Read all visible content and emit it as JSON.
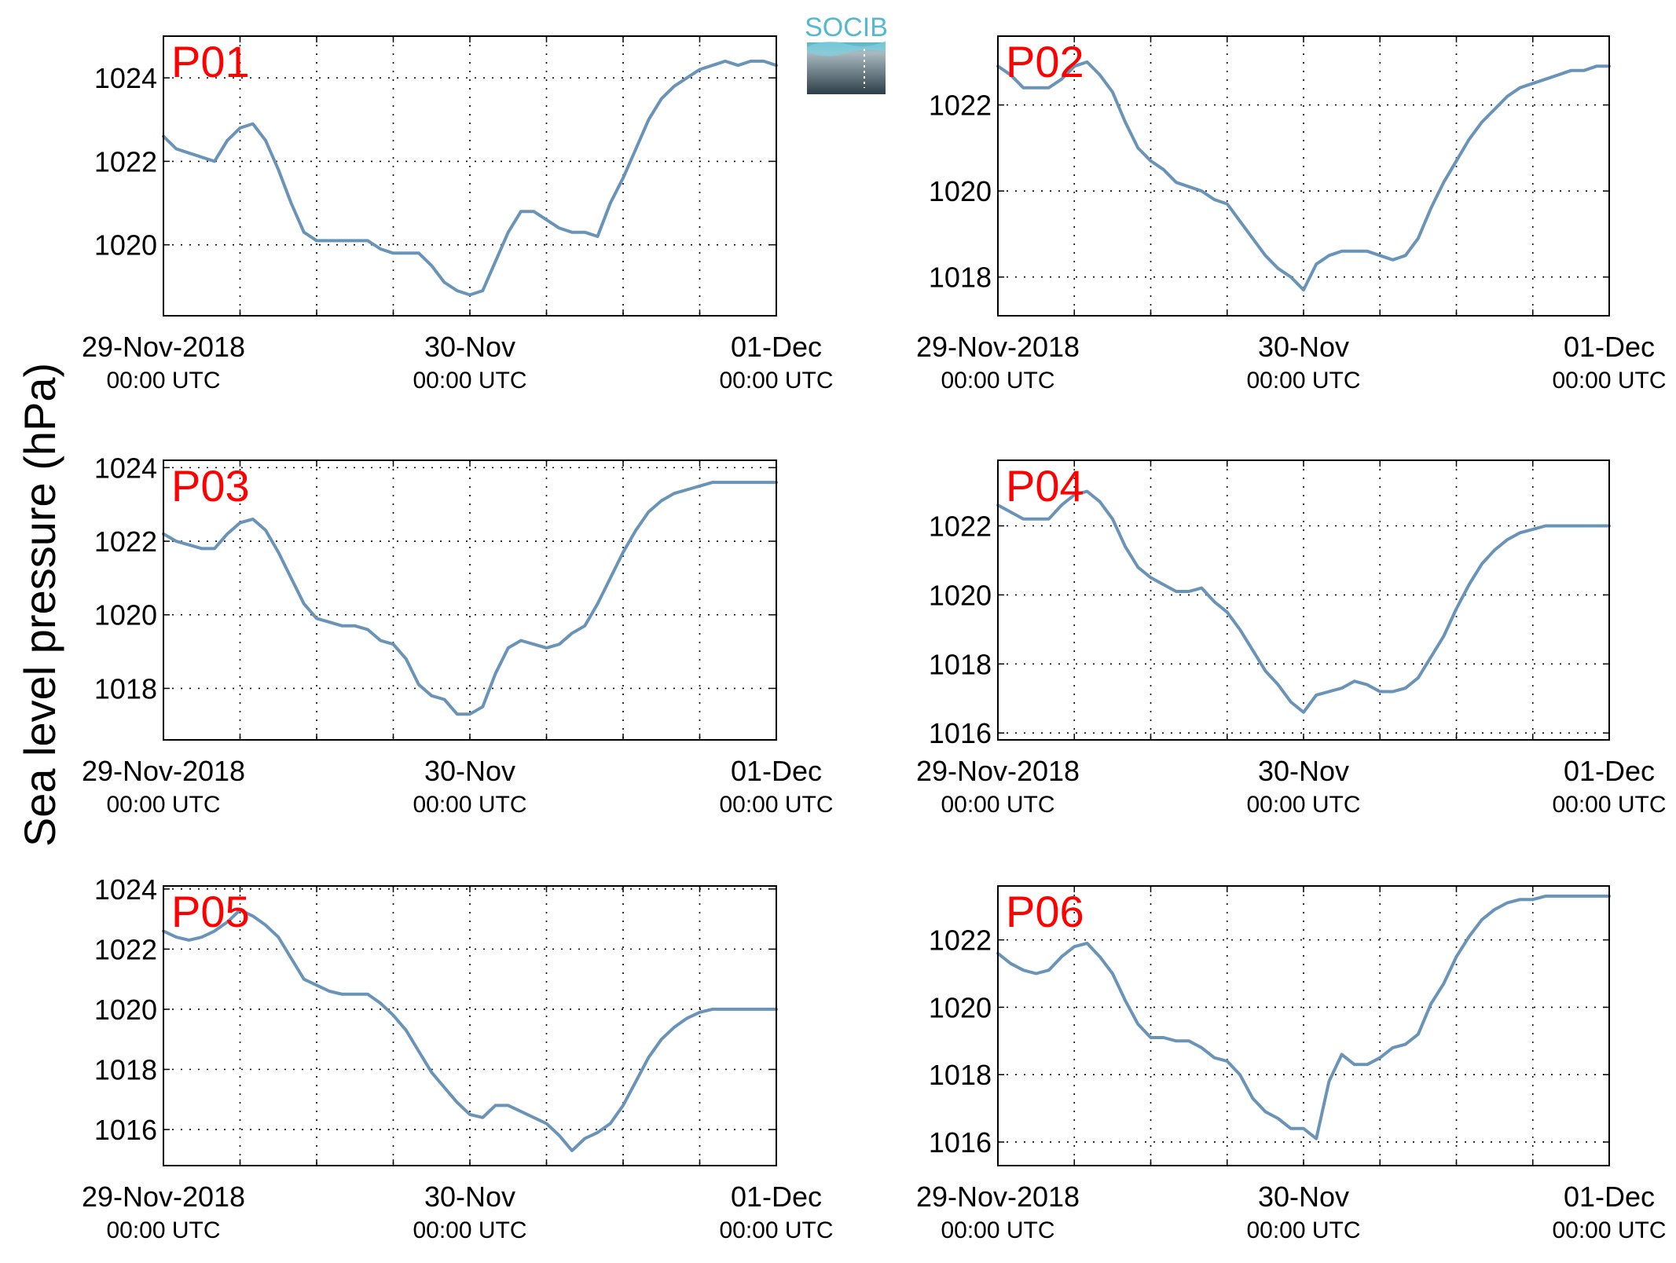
{
  "figure": {
    "ylabel": "Sea level pressure (hPa)",
    "logo_text": "SOCIB",
    "colors": {
      "line": "#6a93b8",
      "panel_label": "#ff0000",
      "grid": "#000000",
      "logo_top": "#55b8cc",
      "logo_bottom": "#2c3e48"
    }
  },
  "chart_data": [
    {
      "type": "line",
      "panel_label": "P01",
      "x_ticks": [
        {
          "pos": 0,
          "date": "29-Nov-2018",
          "time": "00:00 UTC"
        },
        {
          "pos": 24,
          "date": "30-Nov",
          "time": "00:00 UTC"
        },
        {
          "pos": 48,
          "date": "01-Dec",
          "time": "00:00 UTC"
        }
      ],
      "xlim": [
        0,
        48
      ],
      "ylim": [
        1018.3,
        1025.0
      ],
      "y_ticks": [
        1020,
        1022,
        1024
      ],
      "grid": true,
      "series": [
        {
          "x": [
            0,
            1,
            2,
            3,
            4,
            5,
            6,
            7,
            8,
            9,
            10,
            11,
            12,
            13,
            14,
            15,
            16,
            17,
            18,
            19,
            20,
            21,
            22,
            23,
            24,
            25,
            26,
            27,
            28,
            29,
            30,
            31,
            32,
            33,
            34,
            35,
            36,
            37,
            38,
            39,
            40,
            41,
            42,
            43,
            44,
            45,
            46,
            47,
            48
          ],
          "values": [
            1022.6,
            1022.3,
            1022.2,
            1022.1,
            1022.0,
            1022.5,
            1022.8,
            1022.9,
            1022.5,
            1021.8,
            1021.0,
            1020.3,
            1020.1,
            1020.1,
            1020.1,
            1020.1,
            1020.1,
            1019.9,
            1019.8,
            1019.8,
            1019.8,
            1019.5,
            1019.1,
            1018.9,
            1018.8,
            1018.9,
            1019.6,
            1020.3,
            1020.8,
            1020.8,
            1020.6,
            1020.4,
            1020.3,
            1020.3,
            1020.2,
            1021.0,
            1021.6,
            1022.3,
            1023.0,
            1023.5,
            1023.8,
            1024.0,
            1024.2,
            1024.3,
            1024.4,
            1024.3,
            1024.4,
            1024.4,
            1024.3
          ]
        }
      ]
    },
    {
      "type": "line",
      "panel_label": "P02",
      "x_ticks": [
        {
          "pos": 0,
          "date": "29-Nov-2018",
          "time": "00:00 UTC"
        },
        {
          "pos": 24,
          "date": "30-Nov",
          "time": "00:00 UTC"
        },
        {
          "pos": 48,
          "date": "01-Dec",
          "time": "00:00 UTC"
        }
      ],
      "xlim": [
        0,
        48
      ],
      "ylim": [
        1017.1,
        1023.6
      ],
      "y_ticks": [
        1018,
        1020,
        1022
      ],
      "grid": true,
      "series": [
        {
          "x": [
            0,
            1,
            2,
            3,
            4,
            5,
            6,
            7,
            8,
            9,
            10,
            11,
            12,
            13,
            14,
            15,
            16,
            17,
            18,
            19,
            20,
            21,
            22,
            23,
            24,
            25,
            26,
            27,
            28,
            29,
            30,
            31,
            32,
            33,
            34,
            35,
            36,
            37,
            38,
            39,
            40,
            41,
            42,
            43,
            44,
            45,
            46,
            47,
            48
          ],
          "values": [
            1022.9,
            1022.7,
            1022.4,
            1022.4,
            1022.4,
            1022.6,
            1022.9,
            1023.0,
            1022.7,
            1022.3,
            1021.6,
            1021.0,
            1020.7,
            1020.5,
            1020.2,
            1020.1,
            1020.0,
            1019.8,
            1019.7,
            1019.3,
            1018.9,
            1018.5,
            1018.2,
            1018.0,
            1017.7,
            1018.3,
            1018.5,
            1018.6,
            1018.6,
            1018.6,
            1018.5,
            1018.4,
            1018.5,
            1018.9,
            1019.6,
            1020.2,
            1020.7,
            1021.2,
            1021.6,
            1021.9,
            1022.2,
            1022.4,
            1022.5,
            1022.6,
            1022.7,
            1022.8,
            1022.8,
            1022.9,
            1022.9
          ]
        }
      ]
    },
    {
      "type": "line",
      "panel_label": "P03",
      "x_ticks": [
        {
          "pos": 0,
          "date": "29-Nov-2018",
          "time": "00:00 UTC"
        },
        {
          "pos": 24,
          "date": "30-Nov",
          "time": "00:00 UTC"
        },
        {
          "pos": 48,
          "date": "01-Dec",
          "time": "00:00 UTC"
        }
      ],
      "xlim": [
        0,
        48
      ],
      "ylim": [
        1016.6,
        1024.2
      ],
      "y_ticks": [
        1018,
        1020,
        1022,
        1024
      ],
      "grid": true,
      "series": [
        {
          "x": [
            0,
            1,
            2,
            3,
            4,
            5,
            6,
            7,
            8,
            9,
            10,
            11,
            12,
            13,
            14,
            15,
            16,
            17,
            18,
            19,
            20,
            21,
            22,
            23,
            24,
            25,
            26,
            27,
            28,
            29,
            30,
            31,
            32,
            33,
            34,
            35,
            36,
            37,
            38,
            39,
            40,
            41,
            42,
            43,
            44,
            45,
            46,
            47,
            48
          ],
          "values": [
            1022.2,
            1022.0,
            1021.9,
            1021.8,
            1021.8,
            1022.2,
            1022.5,
            1022.6,
            1022.3,
            1021.7,
            1021.0,
            1020.3,
            1019.9,
            1019.8,
            1019.7,
            1019.7,
            1019.6,
            1019.3,
            1019.2,
            1018.8,
            1018.1,
            1017.8,
            1017.7,
            1017.3,
            1017.3,
            1017.5,
            1018.4,
            1019.1,
            1019.3,
            1019.2,
            1019.1,
            1019.2,
            1019.5,
            1019.7,
            1020.3,
            1021.0,
            1021.7,
            1022.3,
            1022.8,
            1023.1,
            1023.3,
            1023.4,
            1023.5,
            1023.6,
            1023.6,
            1023.6,
            1023.6,
            1023.6,
            1023.6
          ]
        }
      ]
    },
    {
      "type": "line",
      "panel_label": "P04",
      "x_ticks": [
        {
          "pos": 0,
          "date": "29-Nov-2018",
          "time": "00:00 UTC"
        },
        {
          "pos": 24,
          "date": "30-Nov",
          "time": "00:00 UTC"
        },
        {
          "pos": 48,
          "date": "01-Dec",
          "time": "00:00 UTC"
        }
      ],
      "xlim": [
        0,
        48
      ],
      "ylim": [
        1015.8,
        1023.9
      ],
      "y_ticks": [
        1016,
        1018,
        1020,
        1022
      ],
      "grid": true,
      "series": [
        {
          "x": [
            0,
            1,
            2,
            3,
            4,
            5,
            6,
            7,
            8,
            9,
            10,
            11,
            12,
            13,
            14,
            15,
            16,
            17,
            18,
            19,
            20,
            21,
            22,
            23,
            24,
            25,
            26,
            27,
            28,
            29,
            30,
            31,
            32,
            33,
            34,
            35,
            36,
            37,
            38,
            39,
            40,
            41,
            42,
            43,
            44,
            45,
            46,
            47,
            48
          ],
          "values": [
            1022.6,
            1022.4,
            1022.2,
            1022.2,
            1022.2,
            1022.6,
            1022.9,
            1023.0,
            1022.7,
            1022.2,
            1021.4,
            1020.8,
            1020.5,
            1020.3,
            1020.1,
            1020.1,
            1020.2,
            1019.8,
            1019.5,
            1019.0,
            1018.4,
            1017.8,
            1017.4,
            1016.9,
            1016.6,
            1017.1,
            1017.2,
            1017.3,
            1017.5,
            1017.4,
            1017.2,
            1017.2,
            1017.3,
            1017.6,
            1018.2,
            1018.8,
            1019.6,
            1020.3,
            1020.9,
            1021.3,
            1021.6,
            1021.8,
            1021.9,
            1022.0,
            1022.0,
            1022.0,
            1022.0,
            1022.0,
            1022.0
          ]
        }
      ]
    },
    {
      "type": "line",
      "panel_label": "P05",
      "x_ticks": [
        {
          "pos": 0,
          "date": "29-Nov-2018",
          "time": "00:00 UTC"
        },
        {
          "pos": 24,
          "date": "30-Nov",
          "time": "00:00 UTC"
        },
        {
          "pos": 48,
          "date": "01-Dec",
          "time": "00:00 UTC"
        }
      ],
      "xlim": [
        0,
        48
      ],
      "ylim": [
        1014.8,
        1024.1
      ],
      "y_ticks": [
        1016,
        1018,
        1020,
        1022,
        1024
      ],
      "grid": true,
      "series": [
        {
          "x": [
            0,
            1,
            2,
            3,
            4,
            5,
            6,
            7,
            8,
            9,
            10,
            11,
            12,
            13,
            14,
            15,
            16,
            17,
            18,
            19,
            20,
            21,
            22,
            23,
            24,
            25,
            26,
            27,
            28,
            29,
            30,
            31,
            32,
            33,
            34,
            35,
            36,
            37,
            38,
            39,
            40,
            41,
            42,
            43,
            44,
            45,
            46,
            47,
            48
          ],
          "values": [
            1022.6,
            1022.4,
            1022.3,
            1022.4,
            1022.6,
            1022.9,
            1023.3,
            1023.1,
            1022.8,
            1022.4,
            1021.7,
            1021.0,
            1020.8,
            1020.6,
            1020.5,
            1020.5,
            1020.5,
            1020.2,
            1019.8,
            1019.3,
            1018.6,
            1017.9,
            1017.4,
            1016.9,
            1016.5,
            1016.4,
            1016.8,
            1016.8,
            1016.6,
            1016.4,
            1016.2,
            1015.8,
            1015.3,
            1015.7,
            1015.9,
            1016.2,
            1016.8,
            1017.6,
            1018.4,
            1019.0,
            1019.4,
            1019.7,
            1019.9,
            1020.0,
            1020.0,
            1020.0,
            1020.0,
            1020.0,
            1020.0
          ]
        }
      ]
    },
    {
      "type": "line",
      "panel_label": "P06",
      "x_ticks": [
        {
          "pos": 0,
          "date": "29-Nov-2018",
          "time": "00:00 UTC"
        },
        {
          "pos": 24,
          "date": "30-Nov",
          "time": "00:00 UTC"
        },
        {
          "pos": 48,
          "date": "01-Dec",
          "time": "00:00 UTC"
        }
      ],
      "xlim": [
        0,
        48
      ],
      "ylim": [
        1015.3,
        1023.6
      ],
      "y_ticks": [
        1016,
        1018,
        1020,
        1022
      ],
      "grid": true,
      "series": [
        {
          "x": [
            0,
            1,
            2,
            3,
            4,
            5,
            6,
            7,
            8,
            9,
            10,
            11,
            12,
            13,
            14,
            15,
            16,
            17,
            18,
            19,
            20,
            21,
            22,
            23,
            24,
            25,
            26,
            27,
            28,
            29,
            30,
            31,
            32,
            33,
            34,
            35,
            36,
            37,
            38,
            39,
            40,
            41,
            42,
            43,
            44,
            45,
            46,
            47,
            48
          ],
          "values": [
            1021.6,
            1021.3,
            1021.1,
            1021.0,
            1021.1,
            1021.5,
            1021.8,
            1021.9,
            1021.5,
            1021.0,
            1020.2,
            1019.5,
            1019.1,
            1019.1,
            1019.0,
            1019.0,
            1018.8,
            1018.5,
            1018.4,
            1018.0,
            1017.3,
            1016.9,
            1016.7,
            1016.4,
            1016.4,
            1016.1,
            1017.8,
            1018.6,
            1018.3,
            1018.3,
            1018.5,
            1018.8,
            1018.9,
            1019.2,
            1020.1,
            1020.7,
            1021.5,
            1022.1,
            1022.6,
            1022.9,
            1023.1,
            1023.2,
            1023.2,
            1023.3,
            1023.3,
            1023.3,
            1023.3,
            1023.3,
            1023.3
          ]
        }
      ]
    }
  ]
}
